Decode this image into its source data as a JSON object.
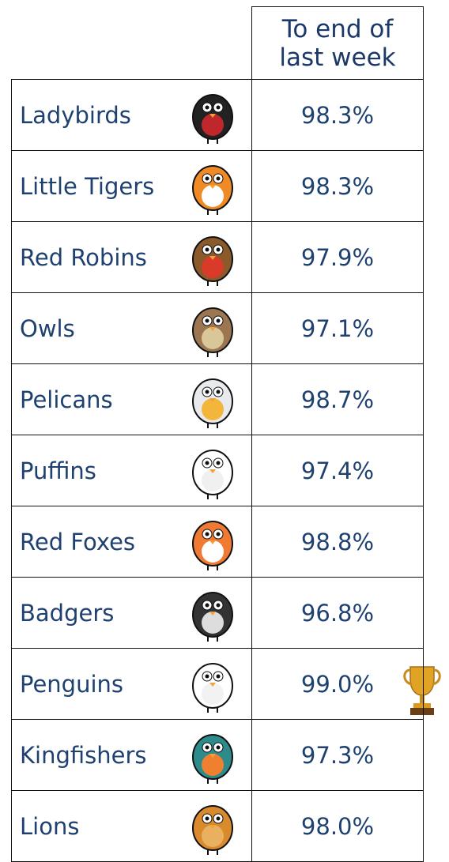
{
  "header": {
    "lines": [
      "To end of",
      "last week"
    ]
  },
  "table": {
    "rows": [
      [
        "Ladybirds",
        "98.3%"
      ],
      [
        "Little Tigers",
        "98.3%"
      ],
      [
        "Red Robins",
        "97.9%"
      ],
      [
        "Owls",
        "97.1%"
      ],
      [
        "Pelicans",
        "98.7%"
      ],
      [
        "Puffins",
        "97.4%"
      ],
      [
        "Red Foxes",
        "98.8%"
      ],
      [
        "Badgers",
        "96.8%"
      ],
      [
        "Penguins",
        "99.0%"
      ],
      [
        "Kingfishers",
        "97.3%"
      ],
      [
        "Lions",
        "98.0%"
      ]
    ]
  }
}
